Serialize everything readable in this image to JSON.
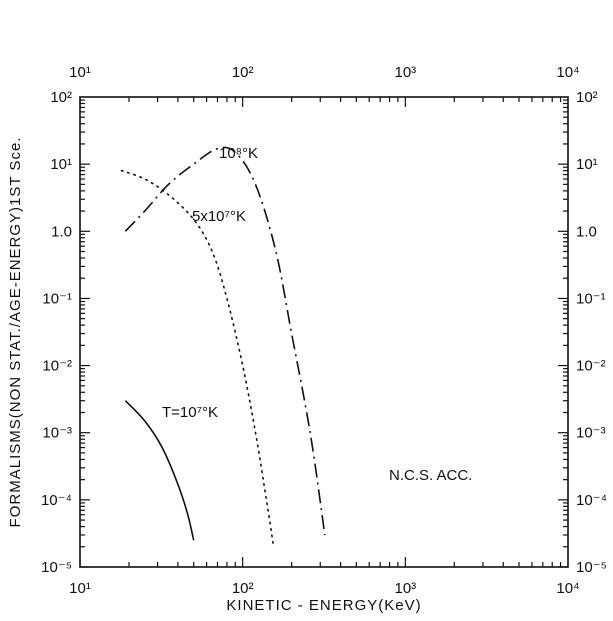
{
  "chart_data": {
    "type": "line",
    "title": "",
    "xlabel": "KINETIC - ENERGY(KeV)",
    "ylabel": "FORMALISMS(NON STAT./AGE-ENERGY)1ST Sce.",
    "x_scale": "log",
    "y_scale": "log",
    "xlim": [
      10,
      10000
    ],
    "ylim": [
      1e-05,
      100
    ],
    "grid": false,
    "x_ticks": [
      {
        "value": 10,
        "label": "10¹"
      },
      {
        "value": 100,
        "label": "10²"
      },
      {
        "value": 1000,
        "label": "10³"
      },
      {
        "value": 10000,
        "label": "10⁴"
      }
    ],
    "y_ticks": [
      {
        "value": 100,
        "label": "10²"
      },
      {
        "value": 10,
        "label": "10¹"
      },
      {
        "value": 1,
        "label": "1.0"
      },
      {
        "value": 0.1,
        "label": "10⁻¹"
      },
      {
        "value": 0.01,
        "label": "10⁻²"
      },
      {
        "value": 0.001,
        "label": "10⁻³"
      },
      {
        "value": 0.0001,
        "label": "10⁻⁴"
      },
      {
        "value": 1e-05,
        "label": "10⁻⁵"
      }
    ],
    "series": [
      {
        "name": "T=10⁷°K",
        "style": "solid",
        "x": [
          19,
          25,
          32,
          40,
          46,
          50
        ],
        "y": [
          0.003,
          0.0015,
          0.0006,
          0.00017,
          6e-05,
          2.5e-05
        ]
      },
      {
        "name": "5x10⁷°K",
        "style": "dotted",
        "x": [
          18,
          25,
          35,
          50,
          65,
          80,
          100,
          120,
          140,
          155
        ],
        "y": [
          8,
          6,
          3.5,
          1.5,
          0.5,
          0.1,
          0.01,
          0.001,
          0.0001,
          2e-05
        ]
      },
      {
        "name": "10⁸°K",
        "style": "dashdot",
        "x": [
          19,
          25,
          35,
          50,
          70,
          90,
          120,
          160,
          200,
          260,
          320
        ],
        "y": [
          1,
          2,
          5,
          10,
          17,
          15,
          5,
          0.5,
          0.03,
          0.001,
          3e-05
        ]
      }
    ],
    "annotations": [
      "N.C.S. ACC."
    ]
  }
}
